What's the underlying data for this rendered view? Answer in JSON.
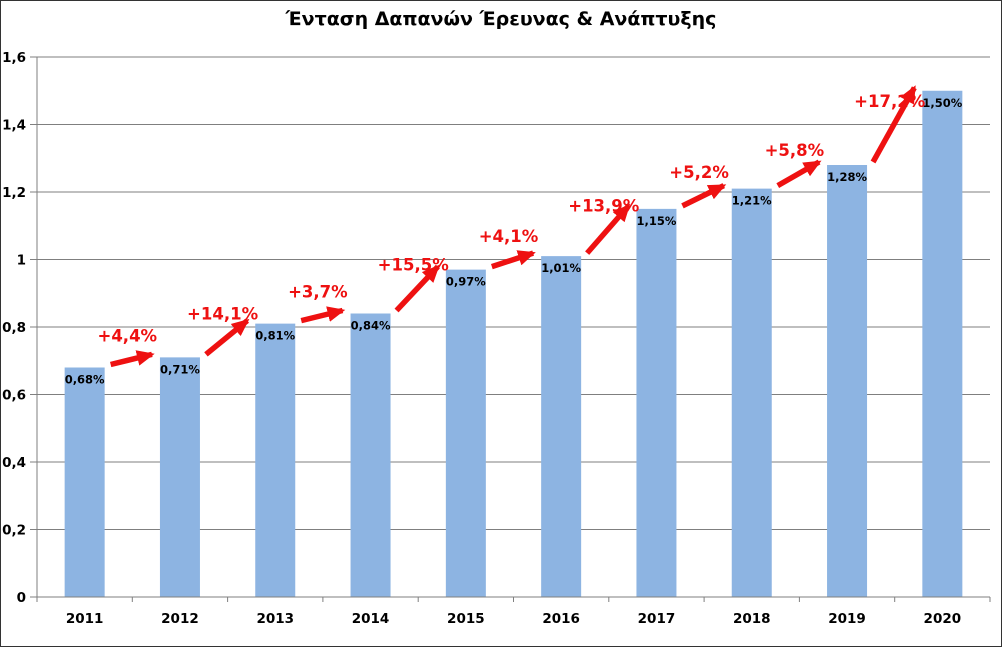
{
  "chart_data": {
    "type": "bar",
    "title": "Ένταση Δαπανών Έρευνας & Ανάπτυξης",
    "categories": [
      "2011",
      "2012",
      "2013",
      "2014",
      "2015",
      "2016",
      "2017",
      "2018",
      "2019",
      "2020"
    ],
    "values": [
      0.68,
      0.71,
      0.81,
      0.84,
      0.97,
      1.01,
      1.15,
      1.21,
      1.28,
      1.5
    ],
    "bar_value_labels": [
      "0,68%",
      "0,71%",
      "0,81%",
      "0,84%",
      "0,97%",
      "1,01%",
      "1,15%",
      "1,21%",
      "1,28%",
      "1,50%"
    ],
    "growth_arrow_labels": [
      "+4,4%",
      "+14,1%",
      "+3,7%",
      "+15,5%",
      "+4,1%",
      "+13,9%",
      "+5,2%",
      "+5,8%",
      "+17,2%"
    ],
    "y_tick_values": [
      0,
      0.2,
      0.4,
      0.6,
      0.8,
      1,
      1.2,
      1.4,
      1.6
    ],
    "y_tick_labels": [
      "0",
      "0,2",
      "0,4",
      "0,6",
      "0,8",
      "1",
      "1,2",
      "1,4",
      "1,6"
    ],
    "ylim": [
      0,
      1.6
    ],
    "xlabel": "",
    "ylabel": "",
    "grid": true,
    "legend_position": "none",
    "colors": {
      "bar_fill": "#8DB4E2",
      "growth_red": "#EE1111",
      "grid_line": "#7F7F7F",
      "axis_line": "#7F7F7F",
      "text_black": "#000000",
      "frame_border": "#333333",
      "background": "#FFFFFF"
    }
  }
}
